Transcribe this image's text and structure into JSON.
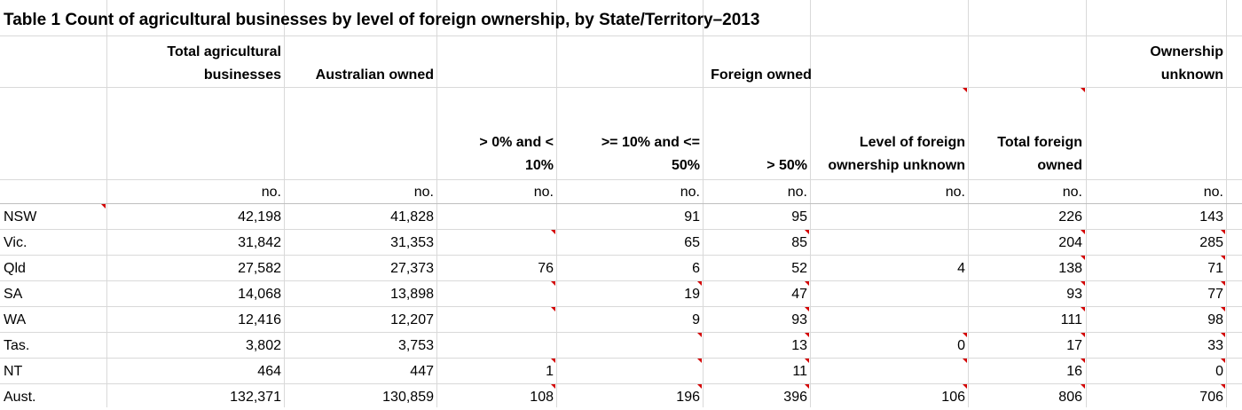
{
  "title": "Table 1 Count of agricultural businesses by level of foreign ownership, by State/Territory–2013",
  "headers": {
    "total": [
      "Total agricultural",
      "businesses"
    ],
    "australian": "Australian owned",
    "foreign_group": "Foreign owned",
    "unknown": [
      "Ownership",
      "unknown"
    ],
    "gt0": [
      "> 0% and <",
      "10%"
    ],
    "ge10": [
      ">= 10% and <=",
      "50%"
    ],
    "gt50": "> 50%",
    "level_unknown": [
      "Level of foreign",
      "ownership unknown"
    ],
    "total_foreign": [
      "Total foreign",
      "owned"
    ]
  },
  "units": [
    "no.",
    "no.",
    "no.",
    "no.",
    "no.",
    "no.",
    "no.",
    "no."
  ],
  "rows": [
    {
      "label": "NSW",
      "values": [
        "42,198",
        "41,828",
        "",
        "91",
        "95",
        "",
        "226",
        "143"
      ]
    },
    {
      "label": "Vic.",
      "values": [
        "31,842",
        "31,353",
        "",
        "65",
        "85",
        "",
        "204",
        "285"
      ]
    },
    {
      "label": "Qld",
      "values": [
        "27,582",
        "27,373",
        "76",
        "6",
        "52",
        "4",
        "138",
        "71"
      ]
    },
    {
      "label": "SA",
      "values": [
        "14,068",
        "13,898",
        "",
        "19",
        "47",
        "",
        "93",
        "77"
      ]
    },
    {
      "label": "WA",
      "values": [
        "12,416",
        "12,207",
        "",
        "9",
        "93",
        "",
        "111",
        "98"
      ]
    },
    {
      "label": "Tas.",
      "values": [
        "3,802",
        "3,753",
        "",
        "",
        "13",
        "0",
        "17",
        "33"
      ]
    },
    {
      "label": "NT",
      "values": [
        "464",
        "447",
        "1",
        "",
        "11",
        "",
        "16",
        "0"
      ]
    },
    {
      "label": "Aust.",
      "values": [
        "132,371",
        "130,859",
        "108",
        "196",
        "396",
        "106",
        "806",
        "706"
      ]
    }
  ]
}
